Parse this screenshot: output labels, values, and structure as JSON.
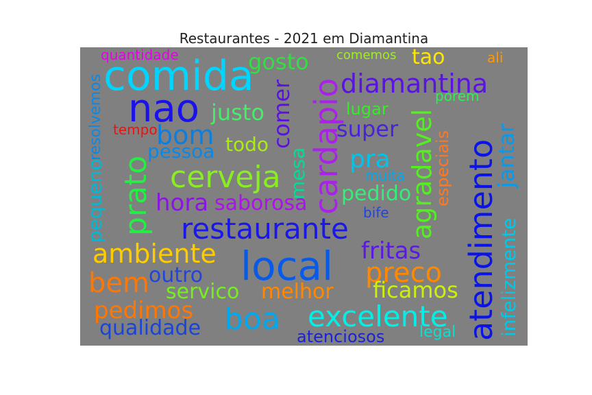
{
  "title": "Restaurantes - 2021 em Diamantina",
  "words": [
    {
      "text": "quantidade",
      "color": "#e600e6"
    },
    {
      "text": "comemos",
      "color": "#9ef01a"
    },
    {
      "text": "tao",
      "color": "#ffe600"
    },
    {
      "text": "ali",
      "color": "#ff9900"
    },
    {
      "text": "gosto",
      "color": "#33dd44"
    },
    {
      "text": "comida",
      "color": "#00d5ff"
    },
    {
      "text": "diamantina",
      "color": "#5a14e0"
    },
    {
      "text": "porem",
      "color": "#33ee55"
    },
    {
      "text": "nao",
      "color": "#1a12e8"
    },
    {
      "text": "lugar",
      "color": "#33ee22"
    },
    {
      "text": "justo",
      "color": "#44ee66"
    },
    {
      "text": "tempo",
      "color": "#ee1111"
    },
    {
      "text": "bom",
      "color": "#0a7fe0"
    },
    {
      "text": "super",
      "color": "#4a22d8"
    },
    {
      "text": "todo",
      "color": "#aaee11"
    },
    {
      "text": "pessoa",
      "color": "#0a88e8"
    },
    {
      "text": "pra",
      "color": "#00c4e8"
    },
    {
      "text": "muita",
      "color": "#00a8ee"
    },
    {
      "text": "cerveja",
      "color": "#88ee22"
    },
    {
      "text": "pedido",
      "color": "#33ee77"
    },
    {
      "text": "hora",
      "color": "#8a14e0"
    },
    {
      "text": "saborosa",
      "color": "#aa14e8"
    },
    {
      "text": "bife",
      "color": "#2244dd"
    },
    {
      "text": "restaurante",
      "color": "#1a18e8"
    },
    {
      "text": "ambiente",
      "color": "#ffcc00"
    },
    {
      "text": "fritas",
      "color": "#5a1ae0"
    },
    {
      "text": "local",
      "color": "#0a5ae8"
    },
    {
      "text": "preco",
      "color": "#ff8800"
    },
    {
      "text": "bem",
      "color": "#ff7700"
    },
    {
      "text": "outro",
      "color": "#2244dd"
    },
    {
      "text": "servico",
      "color": "#77ee22"
    },
    {
      "text": "melhor",
      "color": "#ff8800"
    },
    {
      "text": "ficamos",
      "color": "#ccee11"
    },
    {
      "text": "pedimos",
      "color": "#ff7700"
    },
    {
      "text": "boa",
      "color": "#00a8ee"
    },
    {
      "text": "excelente",
      "color": "#00f0e8"
    },
    {
      "text": "qualidade",
      "color": "#1a44d8"
    },
    {
      "text": "atenciosos",
      "color": "#1a22d8"
    },
    {
      "text": "legal",
      "color": "#11ddcc"
    },
    {
      "text": "pequeno",
      "color": "#00b8d8"
    },
    {
      "text": "resolvemos",
      "color": "#0a88e8"
    },
    {
      "text": "prato",
      "color": "#22ee44"
    },
    {
      "text": "comer",
      "color": "#5a14d8"
    },
    {
      "text": "mesa",
      "color": "#00dd99"
    },
    {
      "text": "cardapio",
      "color": "#aa22e8"
    },
    {
      "text": "agradavel",
      "color": "#55ee22"
    },
    {
      "text": "especiais",
      "color": "#ff7722"
    },
    {
      "text": "atendimento",
      "color": "#0a14e8"
    },
    {
      "text": "jantar",
      "color": "#0a99e8"
    },
    {
      "text": "infelizmente",
      "color": "#00c8e8"
    }
  ]
}
